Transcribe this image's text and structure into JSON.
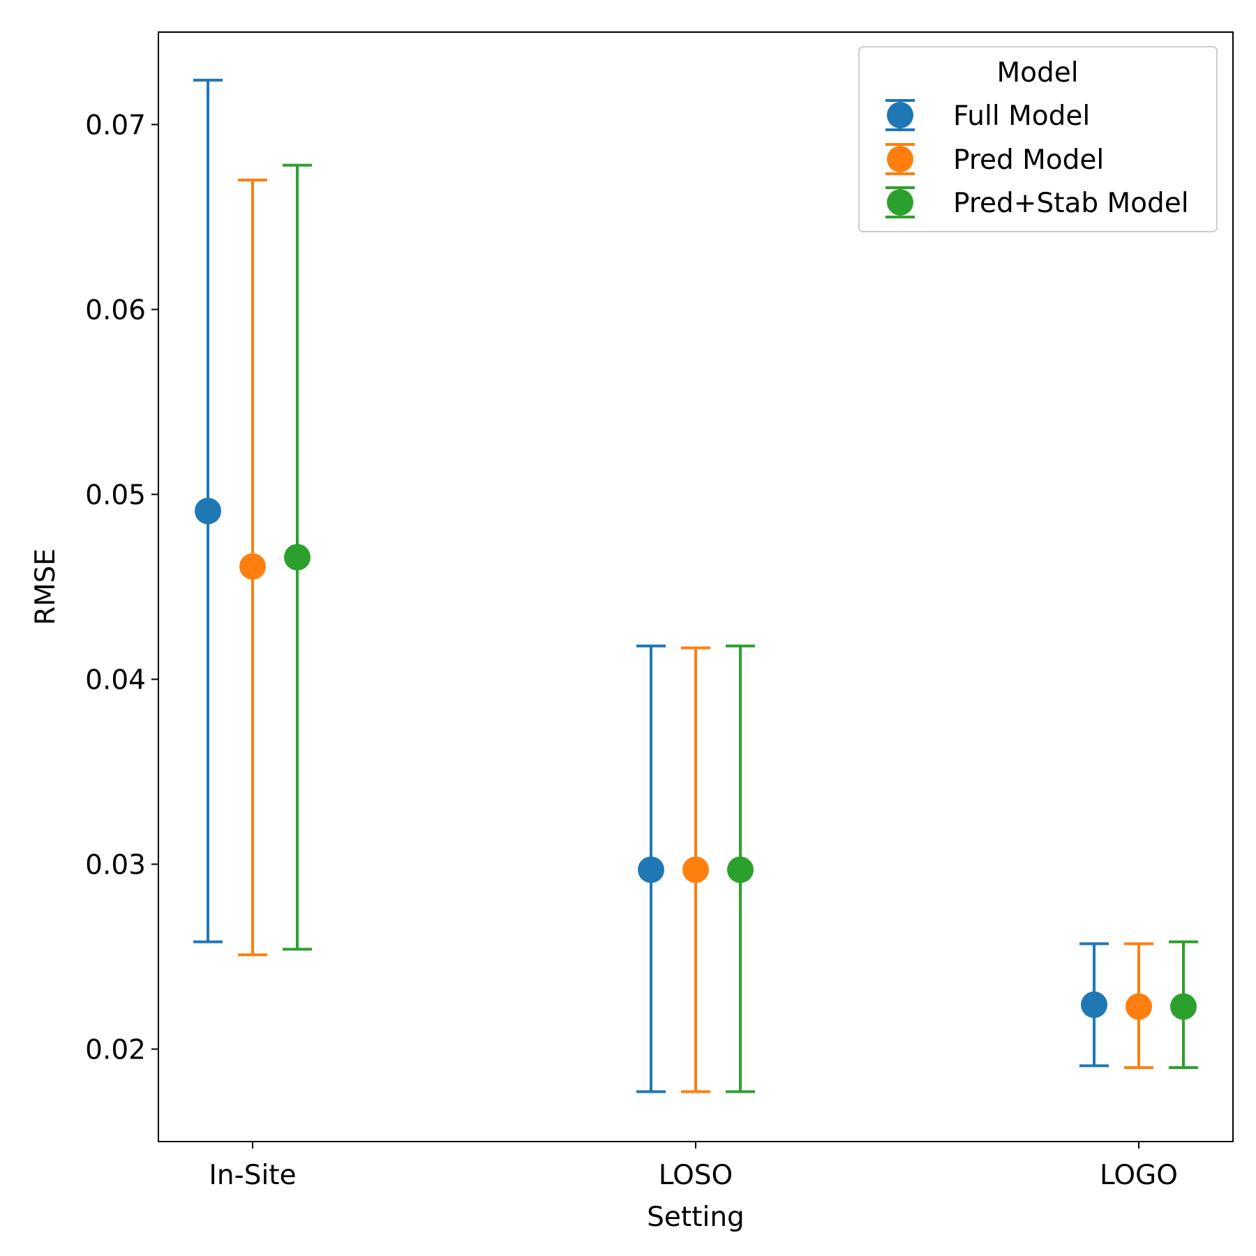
{
  "chart_data": {
    "type": "scatter",
    "categories": [
      "In-Site",
      "LOSO",
      "LOGO"
    ],
    "xlabel": "Setting",
    "ylabel": "RMSE",
    "ylim": [
      0.015,
      0.075
    ],
    "yticks": [
      "0.02",
      "0.03",
      "0.04",
      "0.05",
      "0.06",
      "0.07"
    ],
    "grid": false,
    "legend": {
      "title": "Model",
      "placement": "top-right"
    },
    "series": [
      {
        "name": "Full Model",
        "color": "#1f77b4",
        "values": [
          0.0491,
          0.0297,
          0.0224
        ],
        "err_low": [
          0.0258,
          0.0177,
          0.0191
        ],
        "err_high": [
          0.0724,
          0.0418,
          0.0257
        ]
      },
      {
        "name": "Pred Model",
        "color": "#ff7f0e",
        "values": [
          0.0461,
          0.0297,
          0.0223
        ],
        "err_low": [
          0.0251,
          0.0177,
          0.019
        ],
        "err_high": [
          0.067,
          0.0417,
          0.0257
        ]
      },
      {
        "name": "Pred+Stab Model",
        "color": "#2ca02c",
        "values": [
          0.0466,
          0.0297,
          0.0223
        ],
        "err_low": [
          0.0254,
          0.0177,
          0.019
        ],
        "err_high": [
          0.0678,
          0.0418,
          0.0258
        ]
      }
    ]
  }
}
